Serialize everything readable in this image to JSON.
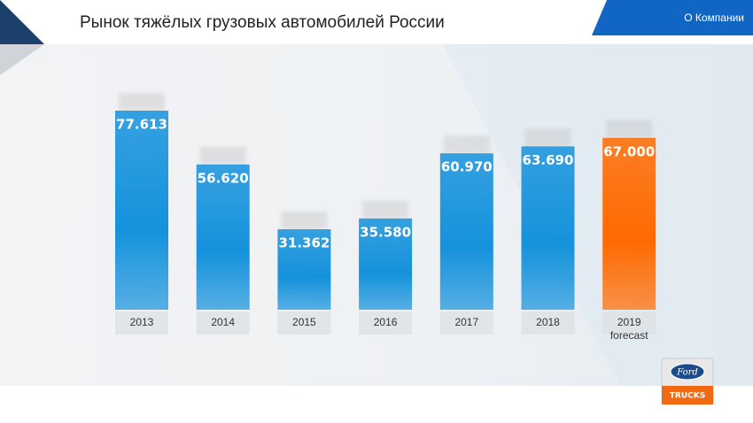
{
  "header": {
    "nav": "О Компании"
  },
  "chart_data": {
    "type": "bar",
    "title": "Рынок тяжёлых грузовых автомобилей России",
    "categories": [
      "2013",
      "2014",
      "2015",
      "2016",
      "2017",
      "2018",
      "2019 forecast"
    ],
    "values": [
      77613,
      56620,
      31362,
      35580,
      60970,
      63690,
      67000
    ],
    "value_labels": [
      "77.613",
      "56.620",
      "31.362",
      "35.580",
      "60.970",
      "63.690",
      "67.000"
    ],
    "colors": [
      "#1592dc",
      "#1592dc",
      "#1592dc",
      "#1592dc",
      "#1592dc",
      "#1592dc",
      "#ff6a00"
    ]
  },
  "logo": {
    "brand": "Ford",
    "text": "TRUCKS"
  }
}
